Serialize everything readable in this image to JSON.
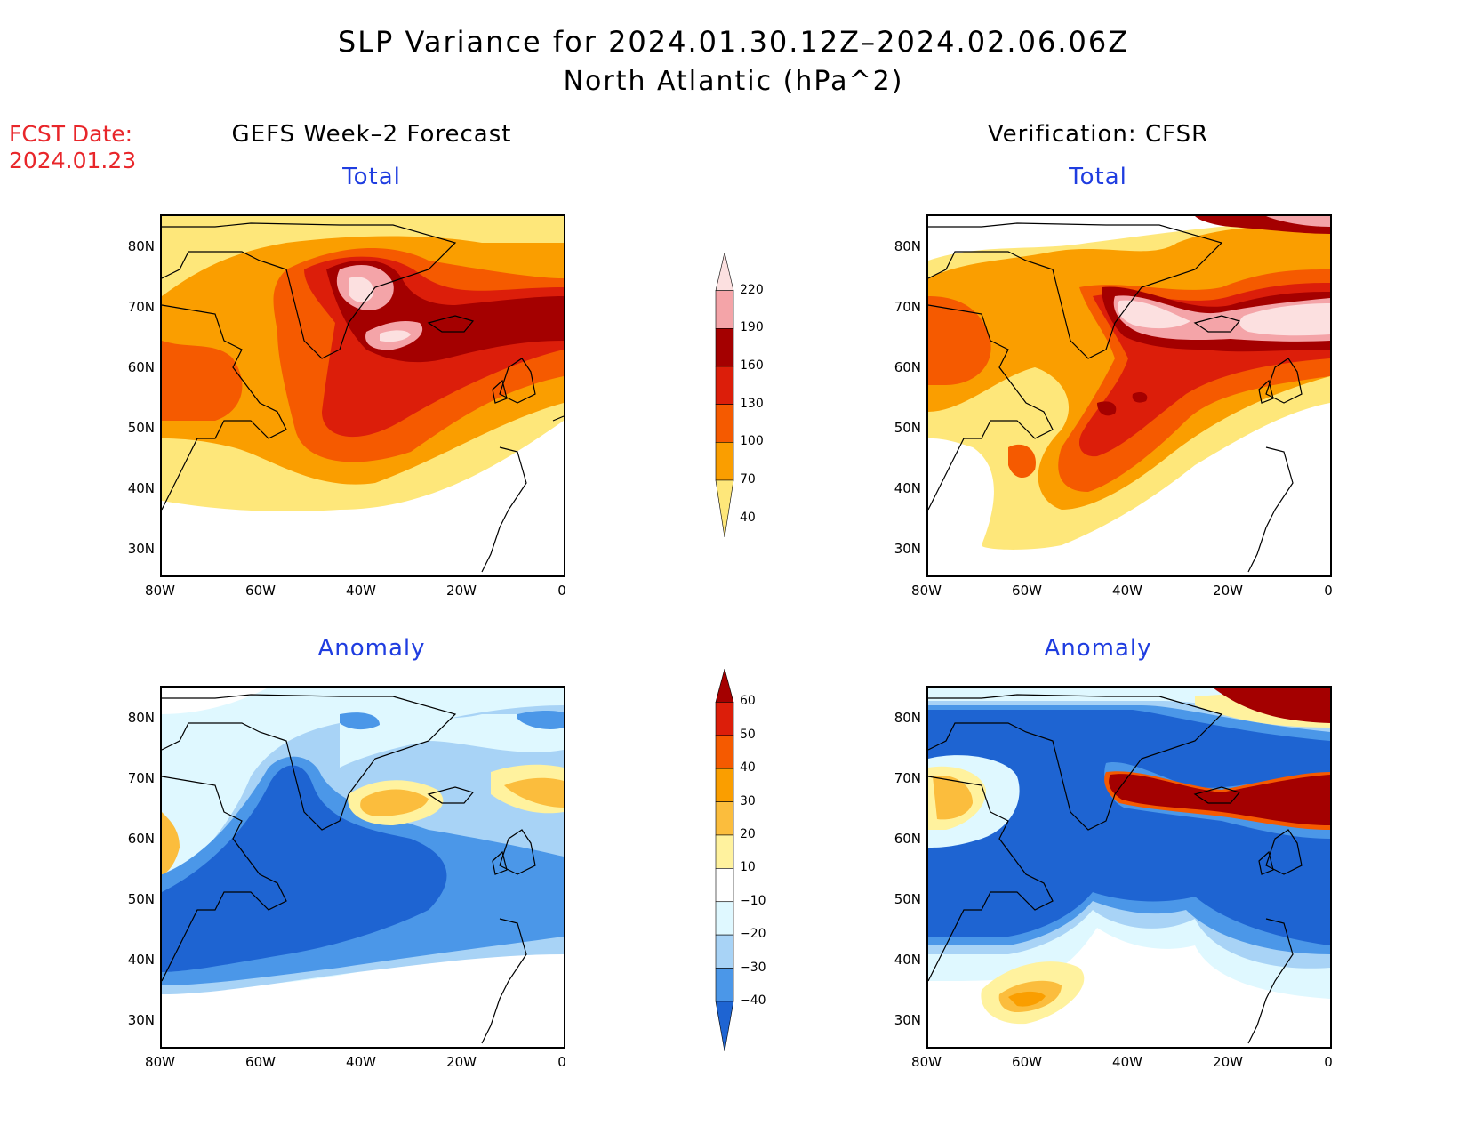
{
  "title": "SLP Variance for 2024.01.30.12Z–2024.02.06.06Z",
  "subtitle": "North Atlantic (hPa^2)",
  "fcst_label": "FCST Date:",
  "fcst_date": "2024.01.23",
  "columns": {
    "left": "GEFS Week–2 Forecast",
    "right": "Verification: CFSR"
  },
  "panels": {
    "top_left": "Total",
    "top_right": "Total",
    "bottom_left": "Anomaly",
    "bottom_right": "Anomaly"
  },
  "axes": {
    "lon_ticks": [
      "80W",
      "60W",
      "40W",
      "20W",
      "0"
    ],
    "lat_ticks": [
      "80N",
      "70N",
      "60N",
      "50N",
      "40N",
      "30N"
    ]
  },
  "colorbars": {
    "total": {
      "levels": [
        "220",
        "190",
        "160",
        "130",
        "100",
        "70",
        "40"
      ],
      "colors": [
        "#fce0e0",
        "#f4a4a8",
        "#a40000",
        "#dc1e0a",
        "#f55a00",
        "#fa9e00",
        "#fee77a"
      ]
    },
    "anomaly": {
      "levels": [
        "60",
        "50",
        "40",
        "30",
        "20",
        "10",
        "−10",
        "−20",
        "−30",
        "−40"
      ],
      "colors": [
        "#a40000",
        "#dc1e0a",
        "#f55a00",
        "#fa9e00",
        "#fbbd3d",
        "#fff29e",
        "#ffffff",
        "#dff8ff",
        "#a8d3f6",
        "#4b97e8",
        "#1e64d2"
      ]
    }
  }
}
